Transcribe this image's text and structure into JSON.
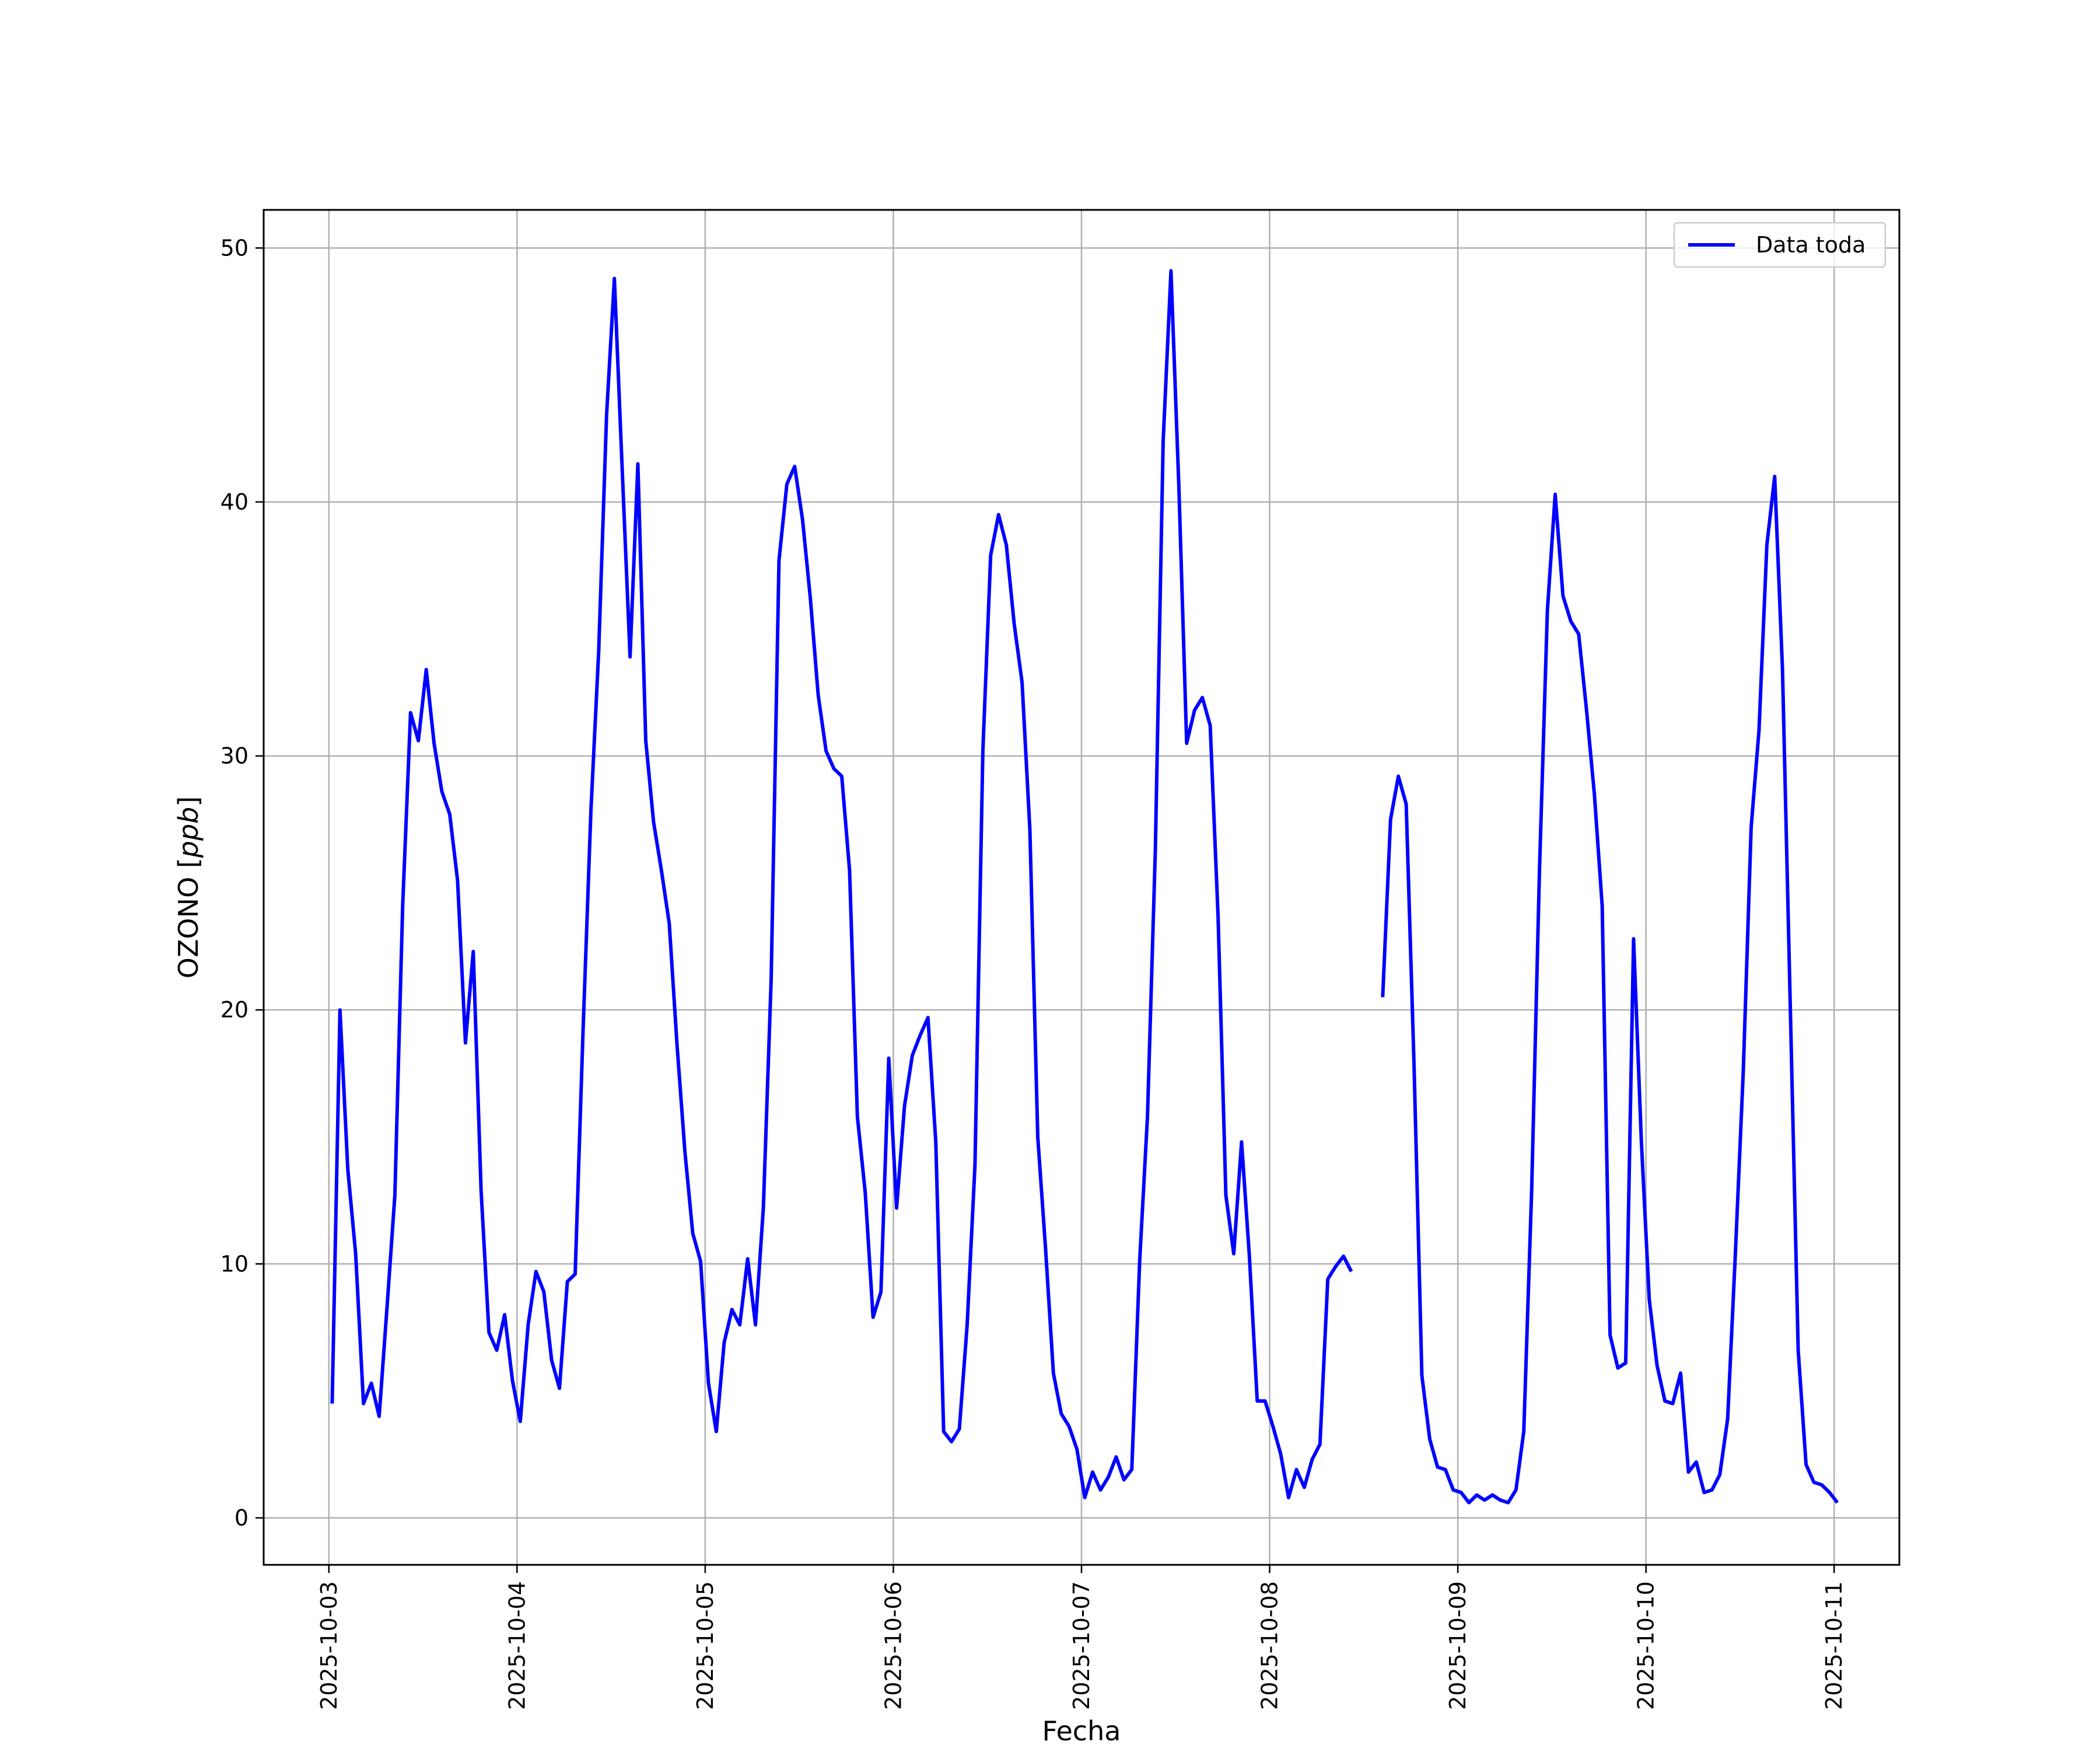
{
  "chart_data": {
    "type": "line",
    "title": "",
    "xlabel": "Fecha",
    "ylabel": "OZONO [ppb]",
    "ylabel_parts": [
      "OZONO [",
      "ppb",
      "]"
    ],
    "x_type": "date",
    "xlim": [
      "2025-10-02 15:41",
      "2025-10-11 08:19"
    ],
    "ylim": [
      -1.85,
      51.5
    ],
    "x_ticks": [
      "2025-10-03",
      "2025-10-04",
      "2025-10-05",
      "2025-10-06",
      "2025-10-07",
      "2025-10-08",
      "2025-10-09",
      "2025-10-10",
      "2025-10-11"
    ],
    "y_ticks": [
      0,
      10,
      20,
      30,
      40,
      50
    ],
    "grid": true,
    "legend_position": "upper right",
    "series": [
      {
        "name": "Data toda",
        "color": "#0000ff",
        "points": [
          [
            "2025-10-03 00:25",
            4.5
          ],
          [
            "2025-10-03 01:25",
            20.0
          ],
          [
            "2025-10-03 02:25",
            13.7
          ],
          [
            "2025-10-03 03:25",
            10.4
          ],
          [
            "2025-10-03 04:25",
            4.5
          ],
          [
            "2025-10-03 05:25",
            5.3
          ],
          [
            "2025-10-03 06:25",
            4.0
          ],
          [
            "2025-10-03 07:25",
            8.3
          ],
          [
            "2025-10-03 08:25",
            12.7
          ],
          [
            "2025-10-03 09:25",
            24.1
          ],
          [
            "2025-10-03 10:25",
            31.7
          ],
          [
            "2025-10-03 11:25",
            30.6
          ],
          [
            "2025-10-03 12:25",
            33.4
          ],
          [
            "2025-10-03 13:25",
            30.5
          ],
          [
            "2025-10-03 14:25",
            28.6
          ],
          [
            "2025-10-03 15:25",
            27.7
          ],
          [
            "2025-10-03 16:25",
            25.1
          ],
          [
            "2025-10-03 17:25",
            18.7
          ],
          [
            "2025-10-03 18:25",
            22.3
          ],
          [
            "2025-10-03 19:25",
            12.9
          ],
          [
            "2025-10-03 20:25",
            7.3
          ],
          [
            "2025-10-03 21:25",
            6.6
          ],
          [
            "2025-10-03 22:25",
            8.0
          ],
          [
            "2025-10-03 23:25",
            5.4
          ],
          [
            "2025-10-04 00:25",
            3.8
          ],
          [
            "2025-10-04 01:25",
            7.6
          ],
          [
            "2025-10-04 02:25",
            9.7
          ],
          [
            "2025-10-04 03:25",
            8.9
          ],
          [
            "2025-10-04 04:25",
            6.2
          ],
          [
            "2025-10-04 05:25",
            5.1
          ],
          [
            "2025-10-04 06:25",
            9.3
          ],
          [
            "2025-10-04 07:25",
            9.6
          ],
          [
            "2025-10-04 08:25",
            19.1
          ],
          [
            "2025-10-04 09:25",
            27.8
          ],
          [
            "2025-10-04 10:25",
            34.1
          ],
          [
            "2025-10-04 11:25",
            43.4
          ],
          [
            "2025-10-04 12:25",
            48.8
          ],
          [
            "2025-10-04 13:25",
            41.3
          ],
          [
            "2025-10-04 14:25",
            33.9
          ],
          [
            "2025-10-04 15:25",
            41.5
          ],
          [
            "2025-10-04 16:25",
            30.6
          ],
          [
            "2025-10-04 17:25",
            27.4
          ],
          [
            "2025-10-04 18:25",
            25.5
          ],
          [
            "2025-10-04 19:25",
            23.4
          ],
          [
            "2025-10-04 20:25",
            18.6
          ],
          [
            "2025-10-04 21:25",
            14.4
          ],
          [
            "2025-10-04 22:25",
            11.2
          ],
          [
            "2025-10-04 23:25",
            10.1
          ],
          [
            "2025-10-05 00:25",
            5.3
          ],
          [
            "2025-10-05 01:25",
            3.4
          ],
          [
            "2025-10-05 02:25",
            6.9
          ],
          [
            "2025-10-05 03:25",
            8.2
          ],
          [
            "2025-10-05 04:25",
            7.6
          ],
          [
            "2025-10-05 05:25",
            10.2
          ],
          [
            "2025-10-05 06:25",
            7.6
          ],
          [
            "2025-10-05 07:25",
            12.2
          ],
          [
            "2025-10-05 08:25",
            21.2
          ],
          [
            "2025-10-05 09:25",
            37.7
          ],
          [
            "2025-10-05 10:25",
            40.7
          ],
          [
            "2025-10-05 11:25",
            41.4
          ],
          [
            "2025-10-05 12:25",
            39.3
          ],
          [
            "2025-10-05 13:25",
            36.2
          ],
          [
            "2025-10-05 14:25",
            32.4
          ],
          [
            "2025-10-05 15:25",
            30.2
          ],
          [
            "2025-10-05 16:25",
            29.5
          ],
          [
            "2025-10-05 17:25",
            29.2
          ],
          [
            "2025-10-05 18:25",
            25.5
          ],
          [
            "2025-10-05 19:25",
            15.8
          ],
          [
            "2025-10-05 20:25",
            12.8
          ],
          [
            "2025-10-05 21:25",
            7.9
          ],
          [
            "2025-10-05 22:25",
            8.9
          ],
          [
            "2025-10-05 23:25",
            18.1
          ],
          [
            "2025-10-06 00:25",
            12.2
          ],
          [
            "2025-10-06 01:25",
            16.2
          ],
          [
            "2025-10-06 02:25",
            18.2
          ],
          [
            "2025-10-06 03:25",
            19.0
          ],
          [
            "2025-10-06 04:25",
            19.7
          ],
          [
            "2025-10-06 05:25",
            14.8
          ],
          [
            "2025-10-06 06:25",
            3.4
          ],
          [
            "2025-10-06 07:25",
            3.0
          ],
          [
            "2025-10-06 08:25",
            3.5
          ],
          [
            "2025-10-06 09:25",
            7.6
          ],
          [
            "2025-10-06 10:25",
            13.9
          ],
          [
            "2025-10-06 11:25",
            30.2
          ],
          [
            "2025-10-06 12:25",
            37.9
          ],
          [
            "2025-10-06 13:25",
            39.5
          ],
          [
            "2025-10-06 14:25",
            38.3
          ],
          [
            "2025-10-06 15:25",
            35.2
          ],
          [
            "2025-10-06 16:25",
            32.9
          ],
          [
            "2025-10-06 17:25",
            27.1
          ],
          [
            "2025-10-06 18:25",
            15.0
          ],
          [
            "2025-10-06 19:25",
            10.6
          ],
          [
            "2025-10-06 20:25",
            5.7
          ],
          [
            "2025-10-06 21:25",
            4.1
          ],
          [
            "2025-10-06 22:25",
            3.6
          ],
          [
            "2025-10-06 23:25",
            2.7
          ],
          [
            "2025-10-07 00:25",
            0.8
          ],
          [
            "2025-10-07 01:25",
            1.8
          ],
          [
            "2025-10-07 02:25",
            1.1
          ],
          [
            "2025-10-07 03:25",
            1.6
          ],
          [
            "2025-10-07 04:25",
            2.4
          ],
          [
            "2025-10-07 05:25",
            1.5
          ],
          [
            "2025-10-07 06:25",
            1.9
          ],
          [
            "2025-10-07 07:25",
            10.1
          ],
          [
            "2025-10-07 08:25",
            15.8
          ],
          [
            "2025-10-07 09:25",
            26.3
          ],
          [
            "2025-10-07 10:25",
            42.4
          ],
          [
            "2025-10-07 11:25",
            49.1
          ],
          [
            "2025-10-07 12:25",
            40.6
          ],
          [
            "2025-10-07 13:25",
            30.5
          ],
          [
            "2025-10-07 14:25",
            31.8
          ],
          [
            "2025-10-07 15:25",
            32.3
          ],
          [
            "2025-10-07 16:25",
            31.2
          ],
          [
            "2025-10-07 17:25",
            23.7
          ],
          [
            "2025-10-07 18:25",
            12.7
          ],
          [
            "2025-10-07 19:25",
            10.4
          ],
          [
            "2025-10-07 20:25",
            14.8
          ],
          [
            "2025-10-07 21:25",
            10.3
          ],
          [
            "2025-10-07 22:25",
            4.6
          ],
          [
            "2025-10-07 23:25",
            4.6
          ],
          [
            "2025-10-08 00:25",
            3.6
          ],
          [
            "2025-10-08 01:25",
            2.5
          ],
          [
            "2025-10-08 02:25",
            0.8
          ],
          [
            "2025-10-08 03:25",
            1.9
          ],
          [
            "2025-10-08 04:25",
            1.2
          ],
          [
            "2025-10-08 05:25",
            2.3
          ],
          [
            "2025-10-08 06:25",
            2.9
          ],
          [
            "2025-10-08 07:25",
            9.4
          ],
          [
            "2025-10-08 08:25",
            9.9
          ],
          [
            "2025-10-08 09:25",
            10.3
          ],
          [
            "2025-10-08 10:25",
            9.7
          ],
          [
            "2025-10-08 11:25",
            null
          ],
          [
            "2025-10-08 12:25",
            null
          ],
          [
            "2025-10-08 13:25",
            null
          ],
          [
            "2025-10-08 14:25",
            20.5
          ],
          [
            "2025-10-08 15:25",
            27.5
          ],
          [
            "2025-10-08 16:25",
            29.2
          ],
          [
            "2025-10-08 17:25",
            28.1
          ],
          [
            "2025-10-08 18:25",
            17.8
          ],
          [
            "2025-10-08 19:25",
            5.6
          ],
          [
            "2025-10-08 20:25",
            3.1
          ],
          [
            "2025-10-08 21:25",
            2.0
          ],
          [
            "2025-10-08 22:25",
            1.9
          ],
          [
            "2025-10-08 23:25",
            1.1
          ],
          [
            "2025-10-09 00:25",
            1.0
          ],
          [
            "2025-10-09 01:25",
            0.6
          ],
          [
            "2025-10-09 02:25",
            0.9
          ],
          [
            "2025-10-09 03:25",
            0.7
          ],
          [
            "2025-10-09 04:25",
            0.9
          ],
          [
            "2025-10-09 05:25",
            0.7
          ],
          [
            "2025-10-09 06:25",
            0.6
          ],
          [
            "2025-10-09 07:25",
            1.1
          ],
          [
            "2025-10-09 08:25",
            3.4
          ],
          [
            "2025-10-09 09:25",
            12.9
          ],
          [
            "2025-10-09 10:25",
            25.5
          ],
          [
            "2025-10-09 11:25",
            35.7
          ],
          [
            "2025-10-09 12:25",
            40.3
          ],
          [
            "2025-10-09 13:25",
            36.3
          ],
          [
            "2025-10-09 14:25",
            35.3
          ],
          [
            "2025-10-09 15:25",
            34.8
          ],
          [
            "2025-10-09 16:25",
            31.8
          ],
          [
            "2025-10-09 17:25",
            28.5
          ],
          [
            "2025-10-09 18:25",
            24.1
          ],
          [
            "2025-10-09 19:25",
            7.2
          ],
          [
            "2025-10-09 20:25",
            5.9
          ],
          [
            "2025-10-09 21:25",
            6.1
          ],
          [
            "2025-10-09 22:25",
            22.8
          ],
          [
            "2025-10-09 23:25",
            14.8
          ],
          [
            "2025-10-10 00:25",
            8.6
          ],
          [
            "2025-10-10 01:25",
            6.0
          ],
          [
            "2025-10-10 02:25",
            4.6
          ],
          [
            "2025-10-10 03:25",
            4.5
          ],
          [
            "2025-10-10 04:25",
            5.7
          ],
          [
            "2025-10-10 05:25",
            1.8
          ],
          [
            "2025-10-10 06:25",
            2.2
          ],
          [
            "2025-10-10 07:25",
            1.0
          ],
          [
            "2025-10-10 08:25",
            1.1
          ],
          [
            "2025-10-10 09:25",
            1.7
          ],
          [
            "2025-10-10 10:25",
            3.9
          ],
          [
            "2025-10-10 11:25",
            10.5
          ],
          [
            "2025-10-10 12:25",
            17.6
          ],
          [
            "2025-10-10 13:25",
            27.2
          ],
          [
            "2025-10-10 14:25",
            31.0
          ],
          [
            "2025-10-10 15:25",
            38.3
          ],
          [
            "2025-10-10 16:25",
            41.0
          ],
          [
            "2025-10-10 17:25",
            33.4
          ],
          [
            "2025-10-10 18:25",
            20.0
          ],
          [
            "2025-10-10 19:25",
            6.6
          ],
          [
            "2025-10-10 20:25",
            2.1
          ],
          [
            "2025-10-10 21:25",
            1.4
          ],
          [
            "2025-10-10 22:25",
            1.3
          ],
          [
            "2025-10-10 23:25",
            1.0
          ],
          [
            "2025-10-11 00:25",
            0.6
          ]
        ]
      }
    ]
  }
}
